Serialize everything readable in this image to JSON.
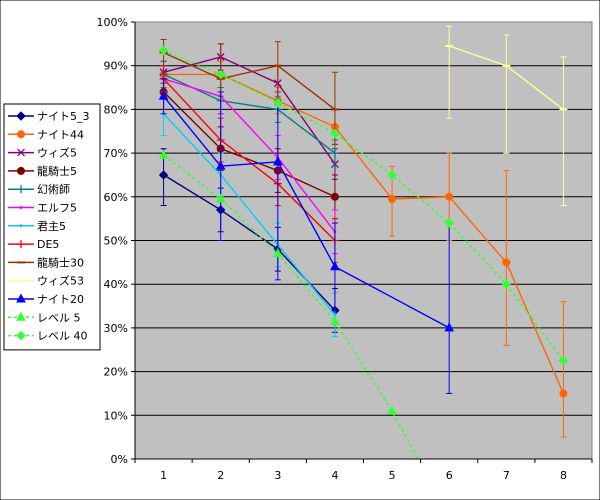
{
  "chart_data": {
    "type": "line",
    "title": "",
    "xlabel": "",
    "ylabel": "",
    "x": [
      1,
      2,
      3,
      4,
      5,
      6,
      7,
      8
    ],
    "x_ticks": [
      "1",
      "2",
      "3",
      "4",
      "5",
      "6",
      "7",
      "8"
    ],
    "ylim": [
      0,
      100
    ],
    "y_ticks": [
      "0%",
      "10%",
      "20%",
      "30%",
      "40%",
      "50%",
      "60%",
      "70%",
      "80%",
      "90%",
      "100%"
    ],
    "grid": true,
    "legend_position": "left",
    "background_color": "#c0c0c0",
    "series": [
      {
        "name": "ナイト5_3",
        "color": "#000080",
        "marker": "diamond",
        "dash": "solid",
        "points": [
          [
            1,
            65
          ],
          [
            2,
            57
          ],
          [
            3,
            48
          ],
          [
            4,
            34
          ]
        ],
        "errors": [
          [
            1,
            58,
            71
          ],
          [
            2,
            52,
            62
          ],
          [
            3,
            43,
            53
          ],
          [
            4,
            29,
            39
          ]
        ]
      },
      {
        "name": "ナイト44",
        "color": "#ff6600",
        "marker": "circle",
        "dash": "solid",
        "points": [
          [
            1,
            88
          ],
          [
            2,
            88
          ],
          [
            3,
            82
          ],
          [
            4,
            76
          ],
          [
            5,
            59.5
          ],
          [
            6,
            60
          ],
          [
            7,
            45
          ],
          [
            8,
            15
          ]
        ],
        "errors": [
          [
            1,
            85,
            91
          ],
          [
            2,
            85,
            91
          ],
          [
            3,
            79,
            85
          ],
          [
            4,
            72,
            80
          ],
          [
            5,
            51,
            67
          ],
          [
            6,
            50,
            70
          ],
          [
            7,
            26,
            66
          ],
          [
            8,
            5,
            36
          ]
        ]
      },
      {
        "name": "ウィズ5",
        "color": "#800080",
        "marker": "x",
        "dash": "solid",
        "points": [
          [
            1,
            88.5
          ],
          [
            2,
            92
          ],
          [
            3,
            86
          ],
          [
            4,
            67.5
          ]
        ],
        "errors": [
          [
            1,
            86,
            91
          ],
          [
            2,
            89,
            95
          ],
          [
            3,
            82,
            90
          ],
          [
            4,
            64,
            71
          ]
        ]
      },
      {
        "name": "龍騎士5",
        "color": "#800000",
        "marker": "circle",
        "dash": "solid",
        "points": [
          [
            1,
            84
          ],
          [
            2,
            71
          ],
          [
            3,
            66
          ],
          [
            4,
            60
          ]
        ],
        "errors": [
          [
            1,
            80,
            88
          ],
          [
            2,
            66,
            76
          ],
          [
            3,
            61,
            71
          ],
          [
            4,
            55,
            65
          ]
        ]
      },
      {
        "name": "幻術師",
        "color": "#008080",
        "marker": "plus",
        "dash": "solid",
        "points": [
          [
            1,
            88
          ],
          [
            2,
            82
          ],
          [
            3,
            80
          ],
          [
            4,
            70
          ]
        ],
        "errors": [
          [
            1,
            85,
            91
          ],
          [
            2,
            79,
            85
          ],
          [
            3,
            77,
            83
          ],
          [
            4,
            67,
            73
          ]
        ]
      },
      {
        "name": "エルフ5",
        "color": "#ff00ff",
        "marker": "none",
        "dash": "solid",
        "points": [
          [
            1,
            87
          ],
          [
            2,
            83
          ],
          [
            3,
            69
          ],
          [
            4,
            52
          ]
        ],
        "errors": [
          [
            1,
            84,
            90
          ],
          [
            2,
            79,
            87
          ],
          [
            3,
            64,
            74
          ],
          [
            4,
            47,
            57
          ]
        ]
      },
      {
        "name": "君主5",
        "color": "#00ccff",
        "marker": "none",
        "dash": "solid",
        "points": [
          [
            1,
            79
          ],
          [
            2,
            65
          ],
          [
            3,
            49
          ],
          [
            4,
            33
          ]
        ],
        "errors": [
          [
            1,
            74,
            84
          ],
          [
            2,
            60,
            70
          ],
          [
            3,
            44,
            54
          ],
          [
            4,
            28,
            38
          ]
        ]
      },
      {
        "name": "DE5",
        "color": "#ff0000",
        "marker": "plus",
        "dash": "solid",
        "points": [
          [
            1,
            87
          ],
          [
            2,
            73
          ],
          [
            3,
            63
          ],
          [
            4,
            50
          ]
        ],
        "errors": [
          [
            1,
            84,
            90
          ],
          [
            2,
            68,
            78
          ],
          [
            3,
            58,
            68
          ],
          [
            4,
            45,
            55
          ]
        ]
      },
      {
        "name": "龍騎士30",
        "color": "#993300",
        "marker": "dash",
        "dash": "solid",
        "points": [
          [
            1,
            93
          ],
          [
            2,
            87
          ],
          [
            3,
            90
          ],
          [
            4,
            80
          ]
        ],
        "errors": [
          [
            1,
            90,
            96
          ],
          [
            2,
            83,
            95
          ],
          [
            3,
            84,
            95.5
          ],
          [
            4,
            72,
            88.5
          ]
        ]
      },
      {
        "name": "ウィズ53",
        "color": "#ffff99",
        "marker": "dash",
        "dash": "solid",
        "points": [
          [
            6,
            94.5
          ],
          [
            7,
            90
          ],
          [
            8,
            80
          ]
        ],
        "errors": [
          [
            6,
            78,
            99
          ],
          [
            7,
            70,
            97
          ],
          [
            8,
            58,
            92
          ]
        ]
      },
      {
        "name": "ナイト20",
        "color": "#0000ff",
        "marker": "triangle",
        "dash": "solid",
        "points": [
          [
            1,
            83
          ],
          [
            2,
            67
          ],
          [
            3,
            68
          ],
          [
            4,
            44
          ],
          [
            6,
            30
          ]
        ],
        "errors": [
          [
            1,
            79,
            87
          ],
          [
            2,
            50,
            84
          ],
          [
            3,
            41,
            81
          ],
          [
            4,
            34,
            54
          ],
          [
            6,
            15,
            54
          ]
        ]
      },
      {
        "name": "レベル 5",
        "color": "#33ff33",
        "marker": "triangle",
        "dash": "dotted",
        "points": [
          [
            1,
            69.5
          ],
          [
            2,
            59.5
          ],
          [
            3,
            47
          ],
          [
            4,
            31.5
          ],
          [
            5,
            11
          ],
          [
            5.45,
            0
          ]
        ],
        "errors": []
      },
      {
        "name": "レベル 40",
        "color": "#33ff33",
        "marker": "diamond",
        "dash": "dotted",
        "points": [
          [
            1,
            93.5
          ],
          [
            2,
            88
          ],
          [
            3,
            81.5
          ],
          [
            4,
            74.5
          ],
          [
            5,
            65
          ],
          [
            6,
            54
          ],
          [
            7,
            40
          ],
          [
            8,
            22.5
          ]
        ],
        "errors": []
      }
    ]
  }
}
